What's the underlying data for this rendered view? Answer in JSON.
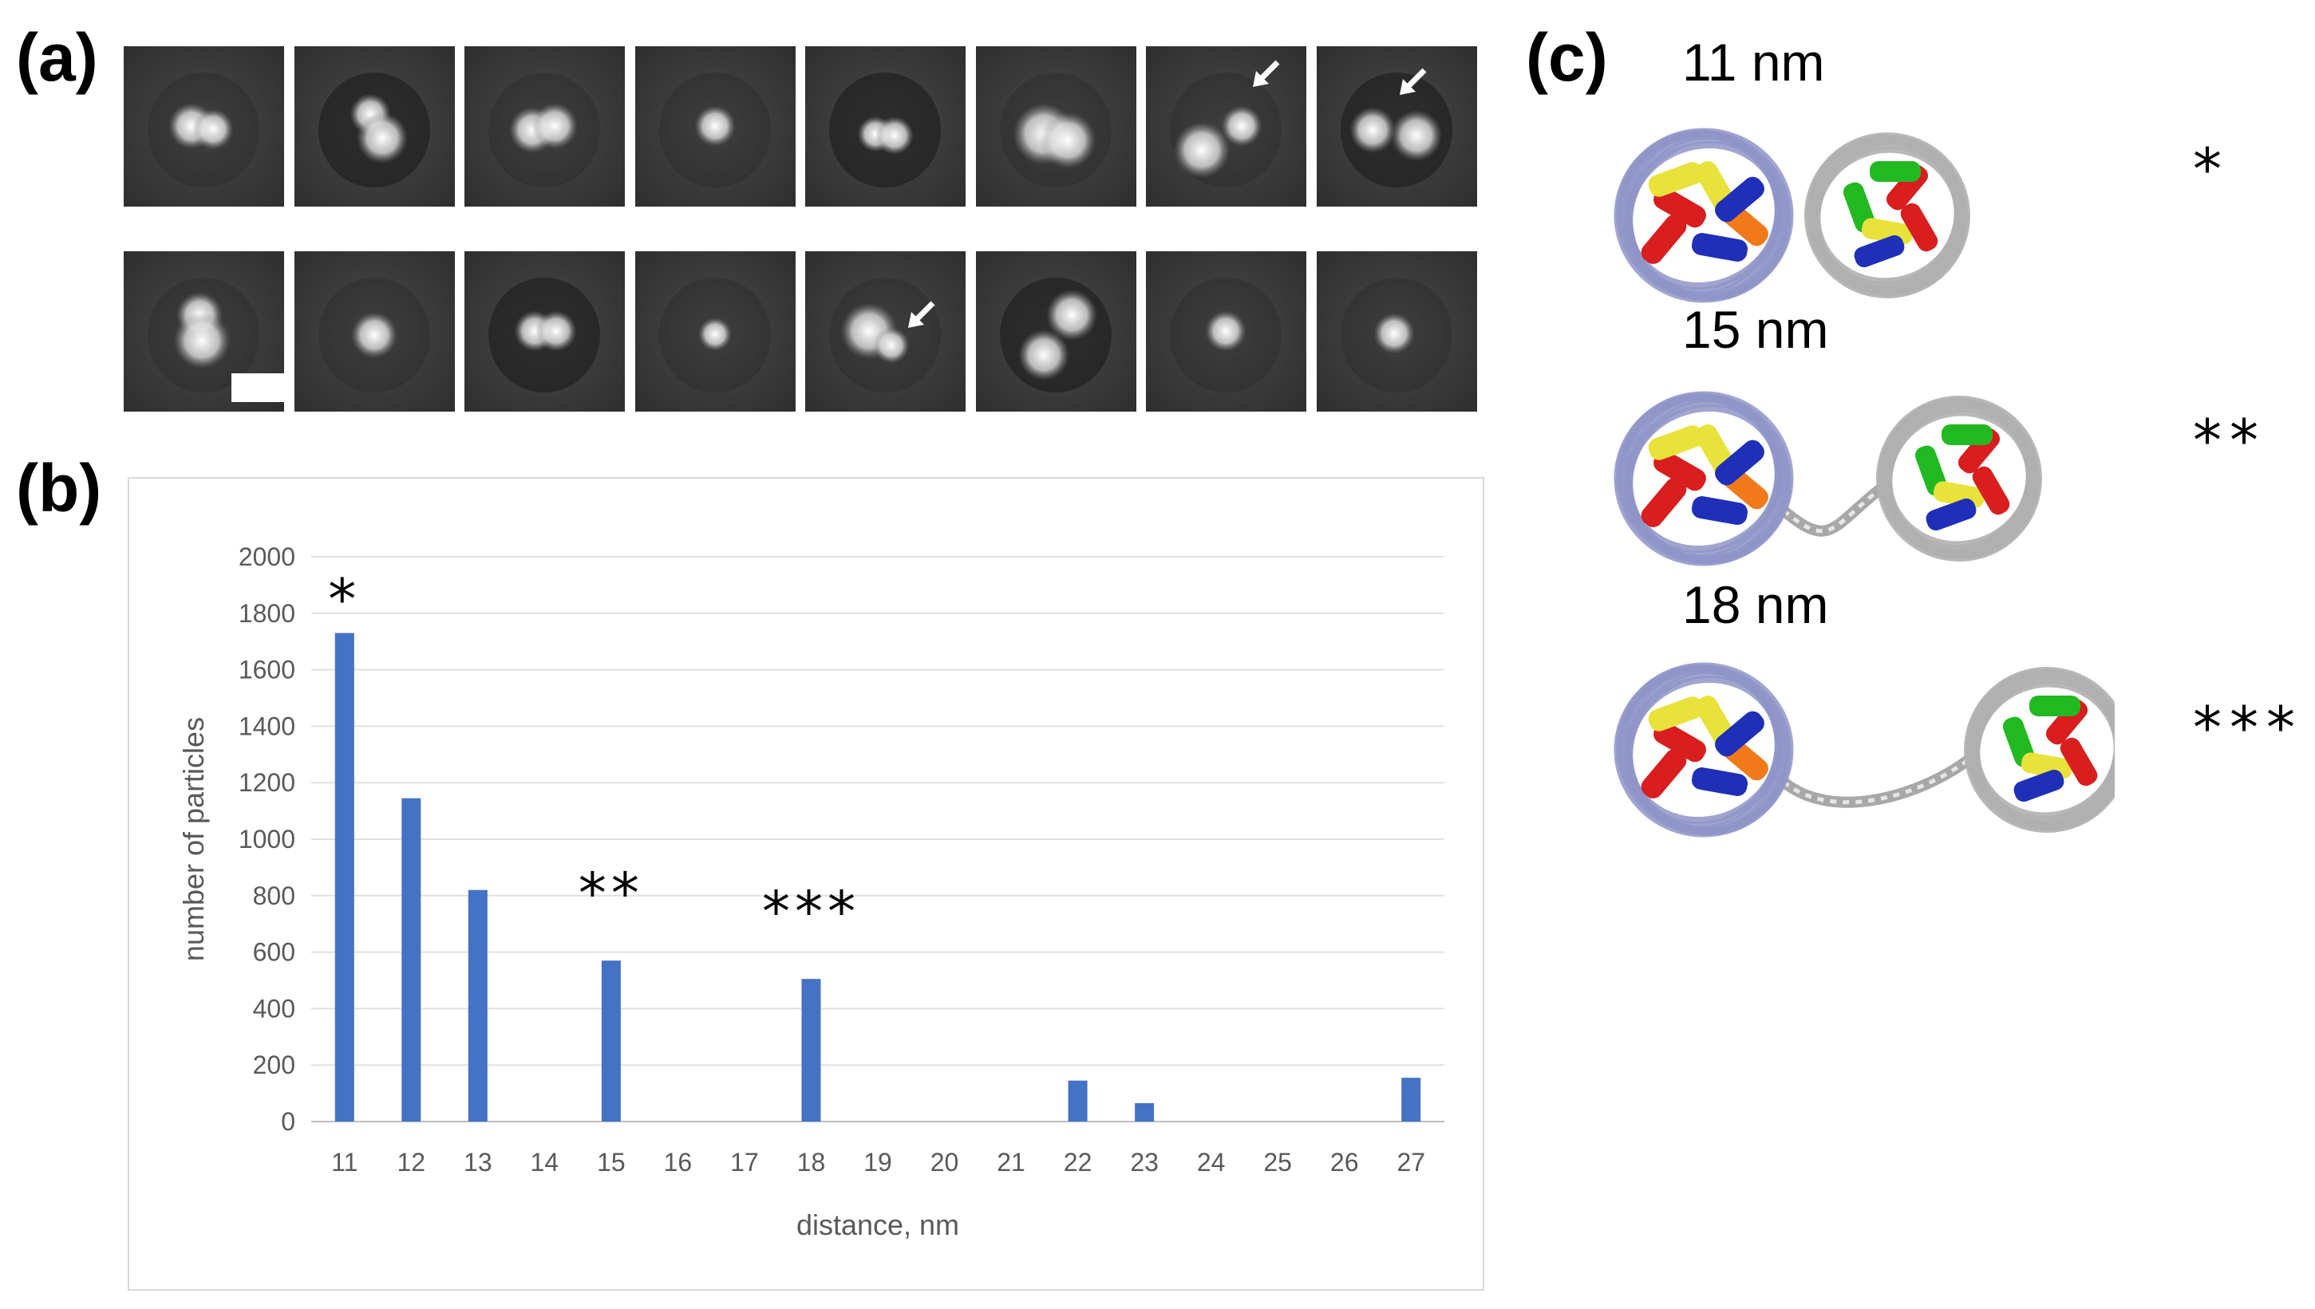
{
  "panels": {
    "a": "(a)",
    "b": "(b)",
    "c": "(c)"
  },
  "chart_data": {
    "type": "bar",
    "categories": [
      "11",
      "12",
      "13",
      "14",
      "15",
      "16",
      "17",
      "18",
      "19",
      "20",
      "21",
      "22",
      "23",
      "24",
      "25",
      "26",
      "27"
    ],
    "values": [
      1730,
      1145,
      820,
      0,
      570,
      0,
      0,
      505,
      0,
      0,
      0,
      145,
      65,
      0,
      0,
      0,
      155
    ],
    "xlabel": "distance, nm",
    "ylabel": "number of particles",
    "ylim": [
      0,
      2000
    ],
    "yticks": [
      "0",
      "200",
      "400",
      "600",
      "800",
      "1000",
      "1200",
      "1400",
      "1600",
      "1800",
      "2000"
    ],
    "grid": true,
    "bar_color": "#4472c4",
    "annotations": [
      {
        "category": "11",
        "text": "*"
      },
      {
        "category": "15",
        "text": "**"
      },
      {
        "category": "18",
        "text": "***"
      }
    ]
  },
  "models": [
    {
      "label": "11 nm",
      "marker": "*"
    },
    {
      "label": "15 nm",
      "marker": "**"
    },
    {
      "label": "18 nm",
      "marker": "***"
    }
  ],
  "colors": {
    "left_dna": "#8f95c8",
    "right_dna": "#b0b0b0",
    "helix_red": "#d81e1e",
    "helix_yellow": "#e8e23a",
    "helix_blue": "#1f2fb8",
    "helix_green": "#22b822",
    "helix_orange": "#f07a1a"
  }
}
